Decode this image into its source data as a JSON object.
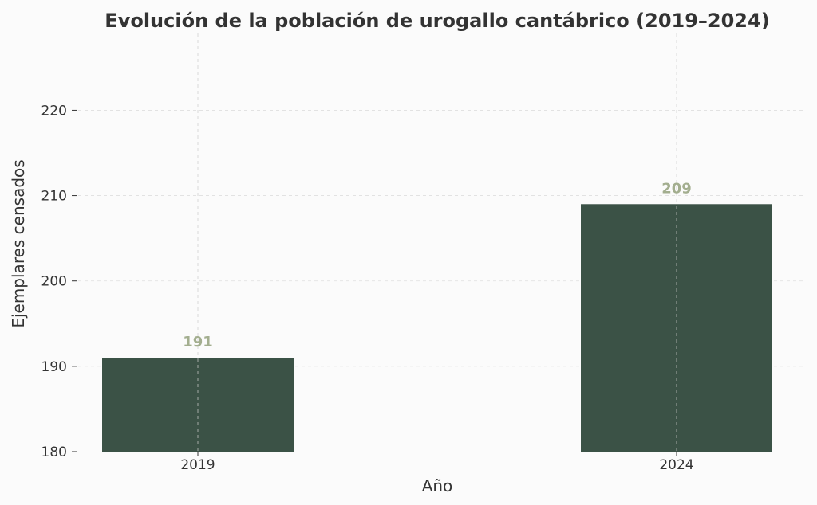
{
  "colors": {
    "bar": "#3b5246",
    "data_label": "#a3ae8f",
    "grid": "#cccccc",
    "text": "#333333",
    "background": "#fbfbfb"
  },
  "chart_data": {
    "type": "bar",
    "title": "Evolución de la población de urogallo cantábrico (2019–2024)",
    "xlabel": "Año",
    "ylabel": "Ejemplares censados",
    "categories": [
      "2019",
      "2024"
    ],
    "values": [
      191,
      209
    ],
    "data_labels": [
      "191",
      "209"
    ],
    "ylim": [
      180,
      229
    ],
    "yticks": [
      180,
      190,
      200,
      210,
      220
    ],
    "ytick_labels": [
      "180",
      "190",
      "200",
      "210",
      "220"
    ],
    "grid": true,
    "legend": "none"
  }
}
